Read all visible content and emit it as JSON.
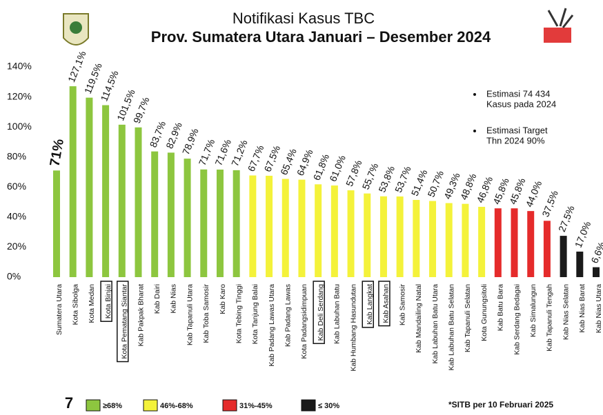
{
  "chart_data": {
    "type": "bar",
    "title": "Notifikasi Kasus TBC",
    "subtitle": "Prov. Sumatera Utara Januari – Desember 2024",
    "categories": [
      "Sumatera Utara",
      "Kota Sibolga",
      "Kota Medan",
      "Kota Binjai",
      "Kota Pematang Siantar",
      "Kab Pakpak Bharat",
      "Kab Dairi",
      "Kab Nias",
      "Kab Tapanuli Utara",
      "Kab Toba Samosir",
      "Kab Karo",
      "Kota Tebing Tinggi",
      "Kota Tanjung Balai",
      "Kab Padang Lawas Utara",
      "Kab Padang Lawas",
      "Kota Padangsidimpuan",
      "Kab Deli Serdang",
      "Kab Labuhan Batu",
      "Kab Humbang Hasundutan",
      "Kab Langkat",
      "Kab Asahan",
      "Kab Samosir",
      "Kab Mandailing Natal",
      "Kab Labuhan Batu Utara",
      "Kab Labuhan Batu Selatan",
      "Kab Tapanuli Selatan",
      "Kota Gunungsitoli",
      "Kab Batu Bara",
      "Kab Serdang Bedagai",
      "Kab Simalungun",
      "Kab Tapanuli Tengah",
      "Kab Nias Selatan",
      "Kab Nias Barat",
      "Kab Nias Utara"
    ],
    "values": [
      71,
      127.1,
      119.5,
      114.5,
      101.5,
      99.7,
      83.7,
      82.9,
      78.9,
      71.7,
      71.6,
      71.2,
      67.7,
      67.5,
      65.4,
      64.9,
      61.8,
      61.0,
      57.8,
      55.7,
      53.8,
      53.7,
      51.4,
      50.7,
      49.3,
      48.8,
      46.8,
      45.8,
      45.8,
      44.0,
      37.5,
      27.5,
      17.0,
      6.6
    ],
    "value_labels": [
      "71%",
      "127,1%",
      "119,5%",
      "114,5%",
      "101,5%",
      "99,7%",
      "83,7%",
      "82,9%",
      "78,9%",
      "71,7%",
      "71,6%",
      "71,2%",
      "67,7%",
      "67,5%",
      "65,4%",
      "64,9%",
      "61,8%",
      "61,0%",
      "57,8%",
      "55,7%",
      "53,8%",
      "53,7%",
      "51,4%",
      "50,7%",
      "49,3%",
      "48,8%",
      "46,8%",
      "45,8%",
      "45,8%",
      "44,0%",
      "37,5%",
      "27,5%",
      "17,0%",
      "6,6%"
    ],
    "colors": [
      "#8dc63f",
      "#8dc63f",
      "#8dc63f",
      "#8dc63f",
      "#8dc63f",
      "#8dc63f",
      "#8dc63f",
      "#8dc63f",
      "#8dc63f",
      "#8dc63f",
      "#8dc63f",
      "#8dc63f",
      "#f4f23a",
      "#f4f23a",
      "#f4f23a",
      "#f4f23a",
      "#f4f23a",
      "#f4f23a",
      "#f4f23a",
      "#f4f23a",
      "#f4f23a",
      "#f4f23a",
      "#f4f23a",
      "#f4f23a",
      "#f4f23a",
      "#f4f23a",
      "#f4f23a",
      "#e52b2b",
      "#e52b2b",
      "#e52b2b",
      "#e52b2b",
      "#1a1a1a",
      "#1a1a1a",
      "#1a1a1a"
    ],
    "highlight": [
      false,
      false,
      false,
      true,
      true,
      false,
      false,
      false,
      false,
      false,
      false,
      false,
      false,
      false,
      false,
      false,
      true,
      false,
      false,
      true,
      true,
      false,
      false,
      false,
      false,
      false,
      false,
      false,
      false,
      false,
      false,
      false,
      false,
      false
    ],
    "ylim": [
      0,
      140
    ],
    "yticks": [
      {
        "value": 0,
        "label": "0%"
      },
      {
        "value": 20,
        "label": "20%"
      },
      {
        "value": 40,
        "label": "40%"
      },
      {
        "value": 60,
        "label": "60%"
      },
      {
        "value": 80,
        "label": "80%"
      },
      {
        "value": 100,
        "label": "100%"
      },
      {
        "value": 120,
        "label": "120%"
      },
      {
        "value": 140,
        "label": "140%"
      }
    ],
    "grid": false,
    "annotations": [
      [
        "Estimasi 74 434",
        "Kasus pada 2024"
      ],
      [
        "Estimasi Target",
        "Thn 2024   90%"
      ]
    ],
    "legend": [
      {
        "label": "≥68%",
        "color": "#8dc63f"
      },
      {
        "label": "46%-68%",
        "color": "#f4f23a"
      },
      {
        "label": "31%-45%",
        "color": "#e52b2b"
      },
      {
        "label": "≤ 30%",
        "color": "#1a1a1a"
      }
    ],
    "source": "*SITB per 10 Februari 2025",
    "page_number": "7"
  }
}
